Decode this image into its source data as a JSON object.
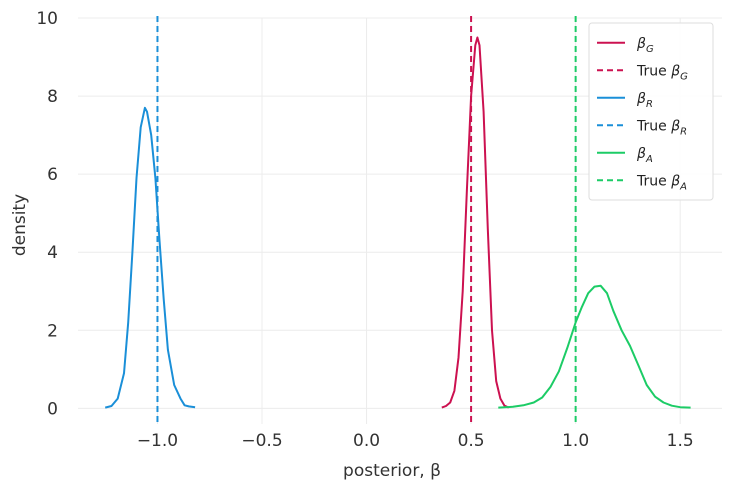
{
  "chart_data": {
    "type": "line",
    "xlabel": "posterior, β",
    "ylabel": "density",
    "xlim": [
      -1.38,
      1.7
    ],
    "ylim": [
      -0.4,
      10.0
    ],
    "xticks": [
      -1.0,
      -0.5,
      0.0,
      0.5,
      1.0,
      1.5
    ],
    "xtick_labels": [
      "−1.0",
      "−0.5",
      "0.0",
      "0.5",
      "1.0",
      "1.5"
    ],
    "yticks": [
      0,
      2,
      4,
      6,
      8,
      10
    ],
    "ytick_labels": [
      "0",
      "2",
      "4",
      "6",
      "8",
      "10"
    ],
    "grid": true,
    "legend_position": "top-right",
    "series": [
      {
        "key": "beta_G",
        "name": "β",
        "subscript": "G",
        "color": "#cc1150",
        "style": "solid",
        "points": [
          [
            0.36,
            0.02
          ],
          [
            0.38,
            0.06
          ],
          [
            0.4,
            0.15
          ],
          [
            0.42,
            0.45
          ],
          [
            0.44,
            1.3
          ],
          [
            0.46,
            3.0
          ],
          [
            0.48,
            5.6
          ],
          [
            0.5,
            8.0
          ],
          [
            0.52,
            9.3
          ],
          [
            0.53,
            9.5
          ],
          [
            0.54,
            9.3
          ],
          [
            0.56,
            7.6
          ],
          [
            0.58,
            4.6
          ],
          [
            0.6,
            2.0
          ],
          [
            0.62,
            0.7
          ],
          [
            0.64,
            0.25
          ],
          [
            0.66,
            0.07
          ],
          [
            0.68,
            0.02
          ]
        ]
      },
      {
        "key": "true_beta_G",
        "name": "True β",
        "subscript": "G",
        "color": "#cc1150",
        "style": "dashed",
        "x": 0.5
      },
      {
        "key": "beta_R",
        "name": "β",
        "subscript": "R",
        "color": "#1a8fd8",
        "style": "solid",
        "points": [
          [
            -1.25,
            0.02
          ],
          [
            -1.22,
            0.06
          ],
          [
            -1.19,
            0.25
          ],
          [
            -1.16,
            0.9
          ],
          [
            -1.14,
            2.2
          ],
          [
            -1.12,
            4.0
          ],
          [
            -1.1,
            5.9
          ],
          [
            -1.08,
            7.2
          ],
          [
            -1.06,
            7.7
          ],
          [
            -1.05,
            7.6
          ],
          [
            -1.03,
            7.0
          ],
          [
            -1.01,
            5.9
          ],
          [
            -0.99,
            4.3
          ],
          [
            -0.97,
            2.8
          ],
          [
            -0.95,
            1.5
          ],
          [
            -0.92,
            0.6
          ],
          [
            -0.89,
            0.25
          ],
          [
            -0.87,
            0.08
          ],
          [
            -0.85,
            0.05
          ],
          [
            -0.82,
            0.03
          ]
        ]
      },
      {
        "key": "true_beta_R",
        "name": "True β",
        "subscript": "R",
        "color": "#1a8fd8",
        "style": "dashed",
        "x": -1.0
      },
      {
        "key": "beta_A",
        "name": "β",
        "subscript": "A",
        "color": "#1ccc66",
        "style": "solid",
        "points": [
          [
            0.63,
            0.02
          ],
          [
            0.7,
            0.04
          ],
          [
            0.75,
            0.08
          ],
          [
            0.8,
            0.15
          ],
          [
            0.84,
            0.28
          ],
          [
            0.88,
            0.55
          ],
          [
            0.92,
            0.95
          ],
          [
            0.96,
            1.55
          ],
          [
            1.0,
            2.2
          ],
          [
            1.03,
            2.6
          ],
          [
            1.06,
            2.95
          ],
          [
            1.09,
            3.12
          ],
          [
            1.12,
            3.14
          ],
          [
            1.15,
            2.95
          ],
          [
            1.18,
            2.5
          ],
          [
            1.22,
            2.0
          ],
          [
            1.26,
            1.6
          ],
          [
            1.3,
            1.1
          ],
          [
            1.34,
            0.6
          ],
          [
            1.38,
            0.3
          ],
          [
            1.42,
            0.15
          ],
          [
            1.46,
            0.07
          ],
          [
            1.5,
            0.03
          ],
          [
            1.55,
            0.02
          ]
        ]
      },
      {
        "key": "true_beta_A",
        "name": "True β",
        "subscript": "A",
        "color": "#1ccc66",
        "style": "dashed",
        "x": 1.0
      }
    ]
  }
}
